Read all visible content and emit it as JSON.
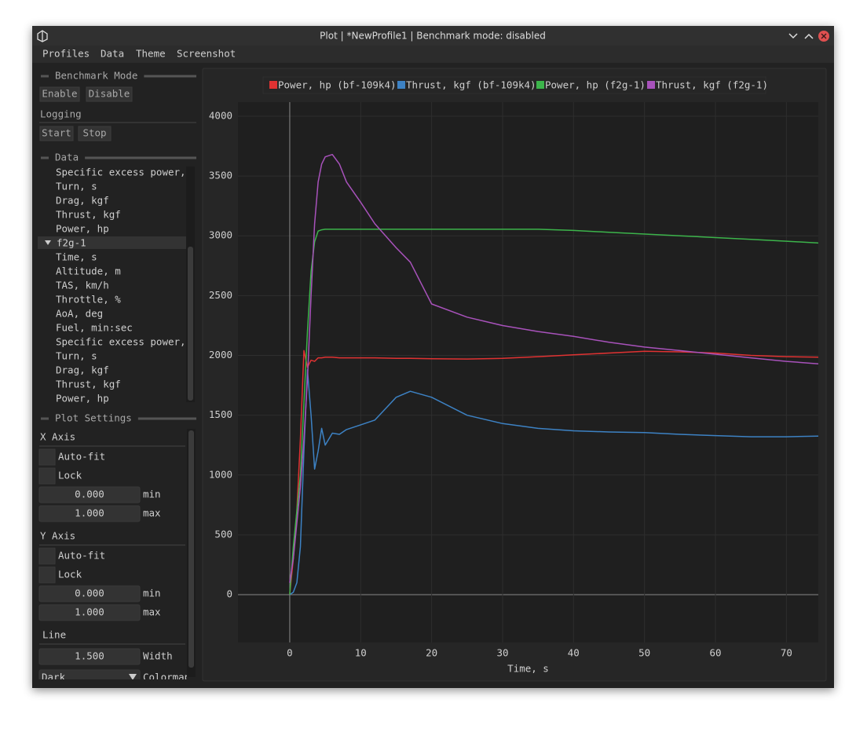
{
  "window": {
    "title": "Plot | *NewProfile1 | Benchmark mode: disabled"
  },
  "menu": [
    "Profiles",
    "Data",
    "Theme",
    "Screenshot"
  ],
  "sidebar": {
    "benchmark": {
      "title": "Benchmark Mode",
      "buttons": [
        "Enable",
        "Disable"
      ]
    },
    "logging": {
      "title": "Logging",
      "buttons": [
        "Start",
        "Stop"
      ]
    },
    "data": {
      "title": "Data",
      "items": [
        "Specific excess power,",
        "Turn, s",
        "Drag, kgf",
        "Thrust, kgf",
        "Power, hp"
      ],
      "group": "f2g-1",
      "group_items": [
        "Time, s",
        "Altitude, m",
        "TAS, km/h",
        "Throttle, %",
        "AoA, deg",
        "Fuel, min:sec",
        "Specific excess power,",
        "Turn, s",
        "Drag, kgf",
        "Thrust, kgf",
        "Power, hp"
      ]
    },
    "plot_settings": {
      "title": "Plot Settings",
      "x_axis": {
        "title": "X Axis",
        "autofit": "Auto-fit",
        "lock": "Lock",
        "min": "0.000",
        "min_label": "min",
        "max": "1.000",
        "max_label": "max"
      },
      "y_axis": {
        "title": "Y Axis",
        "autofit": "Auto-fit",
        "lock": "Lock",
        "min": "0.000",
        "min_label": "min",
        "max": "1.000",
        "max_label": "max"
      },
      "line": {
        "title": "Line",
        "width": "1.500",
        "width_label": "Width",
        "colormap": "Dark",
        "colormap_label": "Colormap"
      }
    }
  },
  "chart_data": {
    "type": "line",
    "x_label": "Time, s",
    "x": [
      0,
      0.5,
      1,
      1.5,
      2,
      2.5,
      3,
      3.5,
      4,
      4.5,
      5,
      6,
      7,
      8,
      10,
      12,
      15,
      17,
      20,
      25,
      30,
      35,
      40,
      45,
      50,
      55,
      60,
      65,
      70,
      74.5
    ],
    "series": [
      {
        "name": "Power, hp (bf-109k4)",
        "color": "#e03232",
        "values": [
          0,
          300,
          700,
          1300,
          2040,
          1900,
          1960,
          1950,
          1980,
          1980,
          1985,
          1985,
          1980,
          1980,
          1980,
          1980,
          1975,
          1975,
          1972,
          1970,
          1975,
          1990,
          2005,
          2020,
          2035,
          2030,
          2020,
          2000,
          1990,
          1985
        ]
      },
      {
        "name": "Thrust, kgf (bf-109k4)",
        "color": "#3d82c4",
        "values": [
          0,
          20,
          100,
          400,
          1200,
          1880,
          1500,
          1050,
          1200,
          1390,
          1250,
          1350,
          1340,
          1380,
          1420,
          1460,
          1650,
          1700,
          1650,
          1500,
          1430,
          1390,
          1370,
          1360,
          1355,
          1340,
          1330,
          1320,
          1320,
          1325
        ]
      },
      {
        "name": "Power, hp (f2g-1)",
        "color": "#3cb44b",
        "values": [
          0,
          400,
          700,
          1000,
          1600,
          2200,
          2700,
          2950,
          3040,
          3050,
          3055,
          3055,
          3055,
          3055,
          3055,
          3055,
          3055,
          3055,
          3055,
          3055,
          3055,
          3055,
          3045,
          3030,
          3015,
          3000,
          2985,
          2970,
          2955,
          2940
        ]
      },
      {
        "name": "Thrust, kgf (f2g-1)",
        "color": "#a852bb",
        "values": [
          100,
          300,
          600,
          900,
          1300,
          1800,
          2500,
          3100,
          3450,
          3600,
          3660,
          3680,
          3600,
          3450,
          3280,
          3100,
          2900,
          2780,
          2430,
          2320,
          2250,
          2200,
          2160,
          2110,
          2070,
          2040,
          2010,
          1980,
          1950,
          1930
        ]
      }
    ],
    "xlim": [
      -7.3,
      74.5
    ],
    "ylim": [
      -400,
      4118
    ],
    "xticks": [
      0,
      10,
      20,
      30,
      40,
      50,
      60,
      70
    ],
    "yticks": [
      0,
      500,
      1000,
      1500,
      2000,
      2500,
      3000,
      3500,
      4000
    ],
    "grid": true,
    "legend": "top"
  }
}
